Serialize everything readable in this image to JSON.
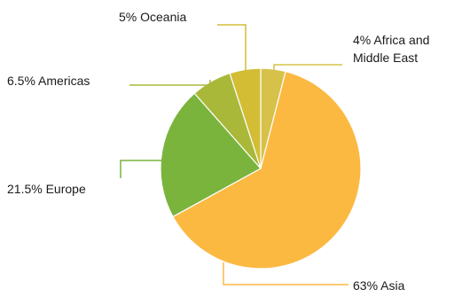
{
  "chart_data": {
    "type": "pie",
    "title": "",
    "start": "top, clockwise",
    "slices": [
      {
        "name": "Africa and Middle East",
        "value": 4,
        "label_lines": [
          "4% Africa and",
          "Middle East"
        ],
        "color": "#d6c24a"
      },
      {
        "name": "Asia",
        "value": 63,
        "label_lines": [
          "63% Asia"
        ],
        "color": "#fbb942"
      },
      {
        "name": "Europe",
        "value": 21.5,
        "label_lines": [
          "21.5% Europe"
        ],
        "color": "#7ab43c"
      },
      {
        "name": "Americas",
        "value": 6.5,
        "label_lines": [
          "6.5% Americas"
        ],
        "color": "#aab83a"
      },
      {
        "name": "Oceania",
        "value": 5,
        "label_lines": [
          "5% Oceania"
        ],
        "color": "#d2bd35"
      }
    ]
  }
}
